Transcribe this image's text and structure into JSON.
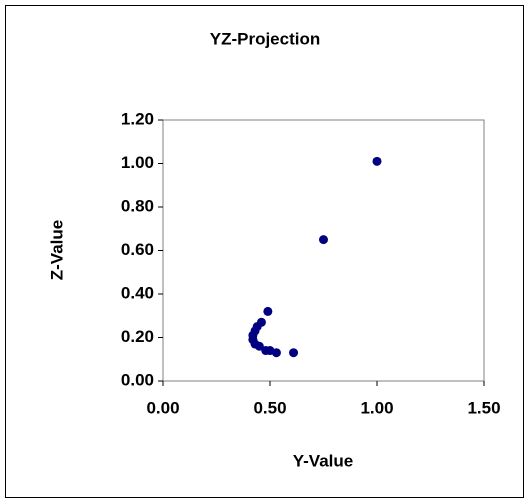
{
  "chart_data": {
    "type": "scatter",
    "title": "YZ-Projection",
    "x_label": "Y-Value",
    "y_label": "Z-Value",
    "series": [
      {
        "color": "#000080",
        "x": [
          1.0,
          0.75,
          0.61,
          0.49,
          0.46,
          0.44,
          0.43,
          0.42,
          0.42,
          0.43,
          0.45,
          0.48,
          0.5,
          0.53
        ],
        "values": [
          1.01,
          0.65,
          0.13,
          0.32,
          0.27,
          0.25,
          0.23,
          0.21,
          0.19,
          0.17,
          0.16,
          0.14,
          0.14,
          0.13
        ]
      }
    ],
    "xlim": [
      0,
      1.5
    ],
    "xticks": [
      {
        "value": 0,
        "label": "0.00"
      },
      {
        "value": 0.5,
        "label": "0.50"
      },
      {
        "value": 1,
        "label": "1.00"
      },
      {
        "value": 1.5,
        "label": "1.50"
      }
    ],
    "ylim": [
      0,
      1.2
    ],
    "yticks": [
      {
        "value": 0,
        "label": "0.00"
      },
      {
        "value": 0.2,
        "label": "0.20"
      },
      {
        "value": 0.4,
        "label": "0.40"
      },
      {
        "value": 0.6,
        "label": "0.60"
      },
      {
        "value": 0.8,
        "label": "0.80"
      },
      {
        "value": 1,
        "label": "1.00"
      },
      {
        "value": 1.2,
        "label": "1.20"
      }
    ],
    "grid": false
  }
}
